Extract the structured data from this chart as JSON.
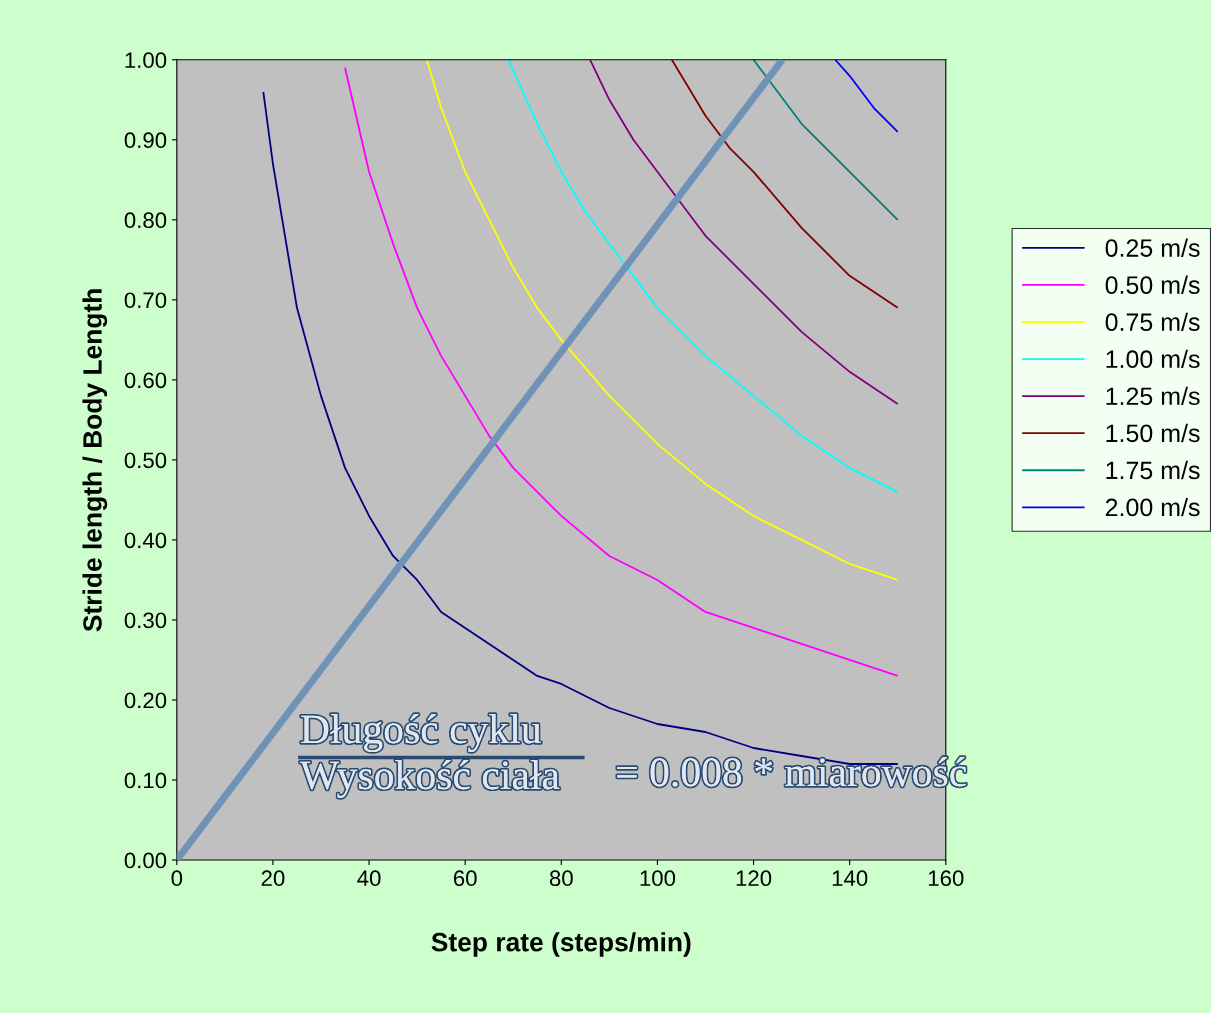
{
  "chart_data": {
    "type": "line",
    "xlabel": "Step rate (steps/min)",
    "ylabel": "Stride length / Body Length",
    "xlim": [
      0,
      160
    ],
    "xticks": [
      0,
      20,
      40,
      60,
      80,
      100,
      120,
      140,
      160
    ],
    "ylim": [
      0,
      1
    ],
    "yticks": [
      {
        "value": 0,
        "label": "0.00"
      },
      {
        "value": 0.1,
        "label": "0.10"
      },
      {
        "value": 0.2,
        "label": "0.20"
      },
      {
        "value": 0.3,
        "label": "0.30"
      },
      {
        "value": 0.4,
        "label": "0.40"
      },
      {
        "value": 0.5,
        "label": "0.50"
      },
      {
        "value": 0.6,
        "label": "0.60"
      },
      {
        "value": 0.7,
        "label": "0.70"
      },
      {
        "value": 0.8,
        "label": "0.80"
      },
      {
        "value": 0.9,
        "label": "0.90"
      },
      {
        "value": 1,
        "label": "1.00"
      }
    ],
    "grid": false,
    "legend": "right",
    "marker": "none",
    "line_style": "solid",
    "annotations": [
      "Długość cyklu",
      "Wysokość ciała",
      "= 0.008 * miarowość"
    ],
    "series": [
      {
        "name": "0.25 m/s",
        "color": "#000080",
        "x": [
          18,
          20,
          25,
          30,
          35,
          40,
          45,
          50,
          55,
          60,
          65,
          70,
          75,
          80,
          90,
          100,
          110,
          120,
          130,
          140,
          150
        ],
        "values": [
          0.96,
          0.87,
          0.69,
          0.58,
          0.49,
          0.43,
          0.38,
          0.35,
          0.31,
          0.29,
          0.27,
          0.25,
          0.23,
          0.22,
          0.19,
          0.17,
          0.16,
          0.14,
          0.13,
          0.12,
          0.12
        ]
      },
      {
        "name": "0.50 m/s",
        "color": "#ff00ff",
        "x": [
          35,
          40,
          45,
          50,
          55,
          60,
          65,
          70,
          75,
          80,
          90,
          100,
          110,
          120,
          130,
          140,
          150
        ],
        "values": [
          0.99,
          0.86,
          0.77,
          0.69,
          0.63,
          0.58,
          0.53,
          0.49,
          0.46,
          0.43,
          0.38,
          0.35,
          0.31,
          0.29,
          0.27,
          0.25,
          0.23
        ]
      },
      {
        "name": "0.75 m/s",
        "color": "#ffff00",
        "x": [
          52,
          55,
          60,
          65,
          70,
          75,
          80,
          90,
          100,
          110,
          120,
          130,
          140,
          150
        ],
        "values": [
          1.0,
          0.94,
          0.86,
          0.8,
          0.74,
          0.69,
          0.65,
          0.58,
          0.52,
          0.47,
          0.43,
          0.4,
          0.37,
          0.35
        ]
      },
      {
        "name": "1.00 m/s",
        "color": "#00ffff",
        "x": [
          69,
          75,
          80,
          85,
          90,
          100,
          110,
          120,
          130,
          140,
          150
        ],
        "values": [
          1.0,
          0.92,
          0.86,
          0.81,
          0.77,
          0.69,
          0.63,
          0.58,
          0.53,
          0.49,
          0.46
        ]
      },
      {
        "name": "1.25 m/s",
        "color": "#800080",
        "x": [
          86,
          90,
          95,
          100,
          110,
          120,
          130,
          140,
          150
        ],
        "values": [
          1.0,
          0.95,
          0.9,
          0.86,
          0.78,
          0.72,
          0.66,
          0.61,
          0.57
        ]
      },
      {
        "name": "1.50 m/s",
        "color": "#800000",
        "x": [
          103,
          105,
          110,
          115,
          120,
          130,
          140,
          150
        ],
        "values": [
          1.0,
          0.98,
          0.93,
          0.89,
          0.86,
          0.79,
          0.73,
          0.69
        ]
      },
      {
        "name": "1.75 m/s",
        "color": "#008080",
        "x": [
          120,
          125,
          130,
          140,
          150
        ],
        "values": [
          1.0,
          0.96,
          0.92,
          0.86,
          0.8
        ]
      },
      {
        "name": "2.00 m/s",
        "color": "#0000ff",
        "x": [
          137,
          140,
          145,
          150
        ],
        "values": [
          1.0,
          0.98,
          0.94,
          0.91
        ]
      },
      {
        "color": "#6f93b7",
        "x": [
          0,
          126
        ],
        "values": [
          0,
          1.0
        ]
      }
    ]
  }
}
